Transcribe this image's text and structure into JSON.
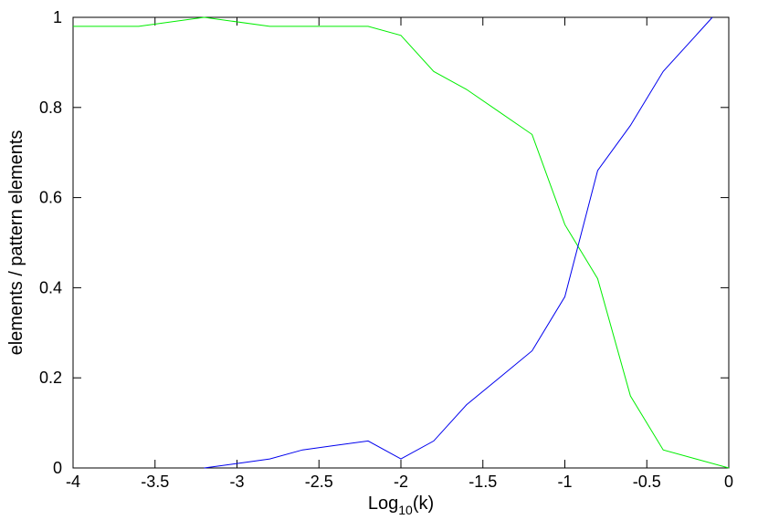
{
  "chart_data": {
    "type": "line",
    "xlabel_main": "Log",
    "xlabel_sub": "10",
    "xlabel_tail": "(k)",
    "ylabel": "elements / pattern elements",
    "xlim": [
      -4,
      0
    ],
    "ylim": [
      0,
      1
    ],
    "xticks": [
      -4,
      -3.5,
      -3,
      -2.5,
      -2,
      -1.5,
      -1,
      -0.5,
      0
    ],
    "xtick_labels": [
      "-4",
      "-3.5",
      "-3",
      "-2.5",
      "-2",
      "-1.5",
      "-1",
      "-0.5",
      "0"
    ],
    "yticks": [
      0,
      0.2,
      0.4,
      0.6,
      0.8,
      1
    ],
    "ytick_labels": [
      "0",
      "0.2",
      "0.4",
      "0.6",
      "0.8",
      "1"
    ],
    "grid": false,
    "series": [
      {
        "color": "#00ee00",
        "x": [
          -4,
          -3.6,
          -3.2,
          -2.8,
          -2.4,
          -2.2,
          -2.0,
          -1.8,
          -1.6,
          -1.4,
          -1.2,
          -1.0,
          -0.8,
          -0.6,
          -0.4,
          -0.2,
          0
        ],
        "y": [
          0.98,
          0.98,
          1.0,
          0.98,
          0.98,
          0.98,
          0.96,
          0.88,
          0.84,
          0.79,
          0.74,
          0.54,
          0.42,
          0.16,
          0.04,
          0.02,
          0.0
        ]
      },
      {
        "color": "#0000ee",
        "x": [
          -3.2,
          -3.0,
          -2.8,
          -2.6,
          -2.4,
          -2.2,
          -2.0,
          -1.8,
          -1.6,
          -1.4,
          -1.2,
          -1.0,
          -0.8,
          -0.6,
          -0.4,
          -0.2,
          -0.1
        ],
        "y": [
          0.0,
          0.01,
          0.02,
          0.04,
          0.05,
          0.06,
          0.02,
          0.06,
          0.14,
          0.2,
          0.26,
          0.38,
          0.66,
          0.76,
          0.88,
          0.96,
          1.0
        ]
      }
    ]
  }
}
